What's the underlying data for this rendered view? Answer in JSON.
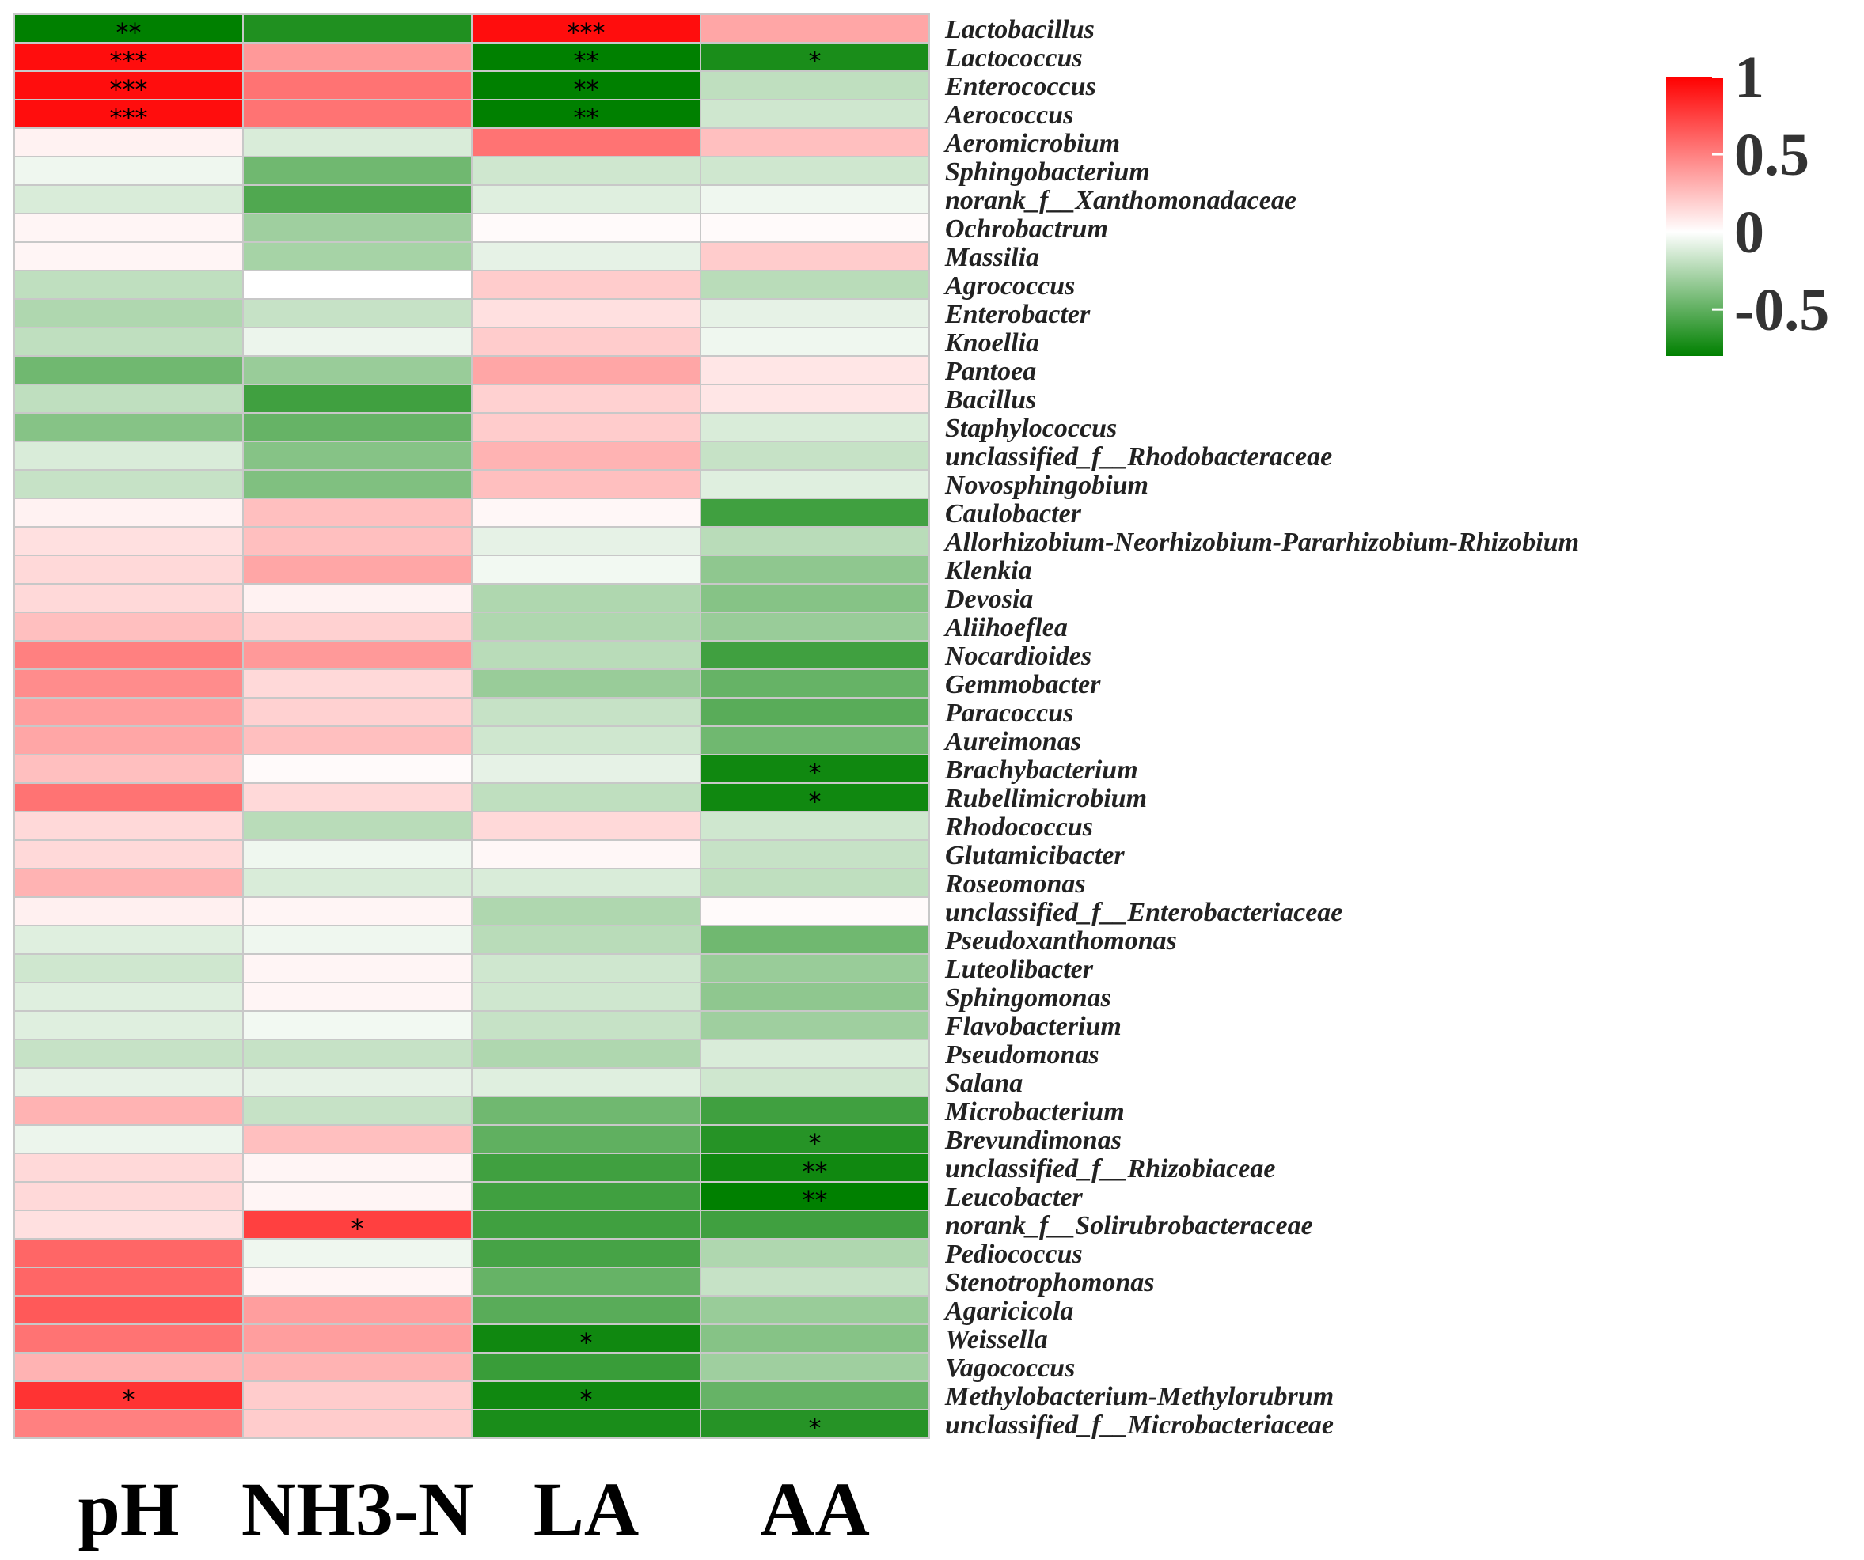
{
  "chart_data": {
    "type": "heatmap",
    "columns": [
      "pH",
      "NH3-N",
      "LA",
      "AA"
    ],
    "rows": [
      "Lactobacillus",
      "Lactococcus",
      "Enterococcus",
      "Aerococcus",
      "Aeromicrobium",
      "Sphingobacterium",
      "norank_f__Xanthomonadaceae",
      "Ochrobactrum",
      "Massilia",
      "Agrococcus",
      "Enterobacter",
      "Knoellia",
      "Pantoea",
      "Bacillus",
      "Staphylococcus",
      "unclassified_f__Rhodobacteraceae",
      "Novosphingobium",
      "Caulobacter",
      "Allorhizobium-Neorhizobium-Pararhizobium-Rhizobium",
      "Klenkia",
      "Devosia",
      "Aliihoeflea",
      "Nocardioides",
      "Gemmobacter",
      "Paracoccus",
      "Aureimonas",
      "Brachybacterium",
      "Rubellimicrobium",
      "Rhodococcus",
      "Glutamicibacter",
      "Roseomonas",
      "unclassified_f__Enterobacteriaceae",
      "Pseudoxanthomonas",
      "Luteolibacter",
      "Sphingomonas",
      "Flavobacterium",
      "Pseudomonas",
      "Salana",
      "Microbacterium",
      "Brevundimonas",
      "unclassified_f__Rhizobiaceae",
      "Leucobacter",
      "norank_f__Solirubrobacteraceae",
      "Pediococcus",
      "Stenotrophomonas",
      "Agaricicola",
      "Weissella",
      "Vagococcus",
      "Methylobacterium-Methylorubrum",
      "unclassified_f__Microbacteriaceae"
    ],
    "values": [
      [
        -0.8,
        -0.7,
        0.95,
        0.35
      ],
      [
        0.95,
        0.4,
        -0.8,
        -0.72
      ],
      [
        0.95,
        0.55,
        -0.8,
        -0.2
      ],
      [
        0.95,
        0.55,
        -0.8,
        -0.15
      ],
      [
        0.05,
        -0.12,
        0.55,
        0.25
      ],
      [
        -0.05,
        -0.45,
        -0.15,
        -0.15
      ],
      [
        -0.12,
        -0.55,
        -0.1,
        -0.05
      ],
      [
        0.04,
        -0.3,
        0.02,
        0.02
      ],
      [
        0.04,
        -0.28,
        -0.08,
        0.2
      ],
      [
        -0.2,
        0.0,
        0.2,
        -0.22
      ],
      [
        -0.25,
        -0.18,
        0.12,
        -0.08
      ],
      [
        -0.2,
        -0.06,
        0.2,
        -0.05
      ],
      [
        -0.45,
        -0.32,
        0.35,
        0.1
      ],
      [
        -0.2,
        -0.6,
        0.18,
        0.1
      ],
      [
        -0.38,
        -0.48,
        0.2,
        -0.12
      ],
      [
        -0.12,
        -0.38,
        0.3,
        -0.18
      ],
      [
        -0.18,
        -0.4,
        0.25,
        -0.1
      ],
      [
        0.05,
        0.25,
        0.03,
        -0.6
      ],
      [
        0.12,
        0.25,
        -0.08,
        -0.22
      ],
      [
        0.15,
        0.35,
        -0.04,
        -0.35
      ],
      [
        0.15,
        0.05,
        -0.25,
        -0.38
      ],
      [
        0.25,
        0.18,
        -0.25,
        -0.32
      ],
      [
        0.5,
        0.4,
        -0.22,
        -0.6
      ],
      [
        0.45,
        0.15,
        -0.32,
        -0.48
      ],
      [
        0.38,
        0.18,
        -0.18,
        -0.52
      ],
      [
        0.35,
        0.25,
        -0.15,
        -0.45
      ],
      [
        0.25,
        0.02,
        -0.08,
        -0.75
      ],
      [
        0.55,
        0.15,
        -0.2,
        -0.75
      ],
      [
        0.15,
        -0.22,
        0.15,
        -0.15
      ],
      [
        0.15,
        -0.05,
        0.03,
        -0.18
      ],
      [
        0.3,
        -0.12,
        -0.12,
        -0.2
      ],
      [
        0.06,
        0.04,
        -0.25,
        0.02
      ],
      [
        -0.1,
        -0.05,
        -0.22,
        -0.45
      ],
      [
        -0.15,
        0.04,
        -0.15,
        -0.32
      ],
      [
        -0.1,
        0.04,
        -0.15,
        -0.35
      ],
      [
        -0.1,
        -0.04,
        -0.18,
        -0.3
      ],
      [
        -0.18,
        -0.18,
        -0.25,
        -0.12
      ],
      [
        -0.08,
        -0.08,
        -0.1,
        -0.15
      ],
      [
        0.3,
        -0.18,
        -0.45,
        -0.6
      ],
      [
        -0.06,
        0.25,
        -0.5,
        -0.68
      ],
      [
        0.15,
        0.04,
        -0.6,
        -0.75
      ],
      [
        0.15,
        0.04,
        -0.6,
        -0.8
      ],
      [
        0.12,
        0.75,
        -0.6,
        -0.6
      ],
      [
        0.6,
        -0.05,
        -0.58,
        -0.25
      ],
      [
        0.6,
        0.04,
        -0.48,
        -0.18
      ],
      [
        0.65,
        0.38,
        -0.52,
        -0.32
      ],
      [
        0.55,
        0.38,
        -0.75,
        -0.38
      ],
      [
        0.3,
        0.3,
        -0.62,
        -0.3
      ],
      [
        0.8,
        0.2,
        -0.75,
        -0.48
      ],
      [
        0.5,
        0.2,
        -0.72,
        -0.68
      ]
    ],
    "significance": [
      [
        "**",
        "",
        "***",
        ""
      ],
      [
        "***",
        "",
        "**",
        "*"
      ],
      [
        "***",
        "",
        "**",
        ""
      ],
      [
        "***",
        "",
        "**",
        ""
      ],
      [
        "",
        "",
        "",
        ""
      ],
      [
        "",
        "",
        "",
        ""
      ],
      [
        "",
        "",
        "",
        ""
      ],
      [
        "",
        "",
        "",
        ""
      ],
      [
        "",
        "",
        "",
        ""
      ],
      [
        "",
        "",
        "",
        ""
      ],
      [
        "",
        "",
        "",
        ""
      ],
      [
        "",
        "",
        "",
        ""
      ],
      [
        "",
        "",
        "",
        ""
      ],
      [
        "",
        "",
        "",
        ""
      ],
      [
        "",
        "",
        "",
        ""
      ],
      [
        "",
        "",
        "",
        ""
      ],
      [
        "",
        "",
        "",
        ""
      ],
      [
        "",
        "",
        "",
        ""
      ],
      [
        "",
        "",
        "",
        ""
      ],
      [
        "",
        "",
        "",
        ""
      ],
      [
        "",
        "",
        "",
        ""
      ],
      [
        "",
        "",
        "",
        ""
      ],
      [
        "",
        "",
        "",
        ""
      ],
      [
        "",
        "",
        "",
        ""
      ],
      [
        "",
        "",
        "",
        ""
      ],
      [
        "",
        "",
        "",
        ""
      ],
      [
        "",
        "",
        "",
        "*"
      ],
      [
        "",
        "",
        "",
        "*"
      ],
      [
        "",
        "",
        "",
        ""
      ],
      [
        "",
        "",
        "",
        ""
      ],
      [
        "",
        "",
        "",
        ""
      ],
      [
        "",
        "",
        "",
        ""
      ],
      [
        "",
        "",
        "",
        ""
      ],
      [
        "",
        "",
        "",
        ""
      ],
      [
        "",
        "",
        "",
        ""
      ],
      [
        "",
        "",
        "",
        ""
      ],
      [
        "",
        "",
        "",
        ""
      ],
      [
        "",
        "",
        "",
        ""
      ],
      [
        "",
        "",
        "",
        ""
      ],
      [
        "",
        "",
        "",
        "*"
      ],
      [
        "",
        "",
        "",
        "**"
      ],
      [
        "",
        "",
        "",
        "**"
      ],
      [
        "",
        "*",
        "",
        ""
      ],
      [
        "",
        "",
        "",
        ""
      ],
      [
        "",
        "",
        "",
        ""
      ],
      [
        "",
        "",
        "",
        ""
      ],
      [
        "",
        "",
        "*",
        ""
      ],
      [
        "",
        "",
        "",
        ""
      ],
      [
        "*",
        "",
        "*",
        ""
      ],
      [
        "",
        "",
        "",
        "*"
      ]
    ],
    "legend": {
      "ticks": [
        "1",
        "0.5",
        "0",
        "-0.5"
      ],
      "tick_values": [
        1,
        0.5,
        0,
        -0.5
      ],
      "range": [
        -0.8,
        1
      ],
      "colors": {
        "positive": "#ff0000",
        "neutral": "#ffffff",
        "negative": "#008000"
      },
      "placement": "top-right"
    }
  }
}
